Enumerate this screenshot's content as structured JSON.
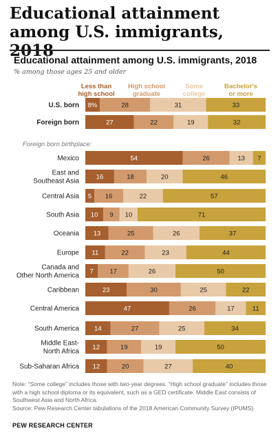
{
  "header": {
    "title": "Educational attainment among U.S. immigrants, 2018"
  },
  "chart_data": {
    "type": "bar",
    "stacked": true,
    "orientation": "horizontal",
    "title": "Educational attainment among U.S. immigrants, 2018",
    "subtitle": "% among those ages 25 and older",
    "series": [
      {
        "name": "Less than high school",
        "color": "#a65f2e"
      },
      {
        "name": "High school graduate",
        "color": "#d29a6c"
      },
      {
        "name": "Some college",
        "color": "#e8c9a8"
      },
      {
        "name": "Bachelor's or more",
        "color": "#c8a23c"
      }
    ],
    "groups": [
      {
        "label": "",
        "rows": [
          {
            "category": "U.S. born",
            "bold": true,
            "values": [
              8,
              28,
              31,
              33
            ],
            "labels": [
              "8%",
              "28",
              "31",
              "33"
            ]
          },
          {
            "category": "Foreign born",
            "bold": true,
            "values": [
              27,
              22,
              19,
              32
            ],
            "labels": [
              "27",
              "22",
              "19",
              "32"
            ]
          }
        ]
      },
      {
        "label": "Foreign born birthplace:",
        "rows": [
          {
            "category": "Mexico",
            "values": [
              54,
              26,
              13,
              7
            ],
            "labels": [
              "54",
              "26",
              "13",
              "7"
            ]
          },
          {
            "category": "East and\nSoutheast Asia",
            "values": [
              16,
              18,
              20,
              46
            ],
            "labels": [
              "16",
              "18",
              "20",
              "46"
            ]
          },
          {
            "category": "Central Asia",
            "values": [
              5,
              16,
              22,
              57
            ],
            "labels": [
              "5",
              "16",
              "22",
              "57"
            ]
          },
          {
            "category": "South Asia",
            "values": [
              10,
              9,
              10,
              71
            ],
            "labels": [
              "10",
              "9",
              "10",
              "71"
            ]
          },
          {
            "category": "Oceania",
            "values": [
              13,
              25,
              26,
              37
            ],
            "labels": [
              "13",
              "25",
              "26",
              "37"
            ]
          },
          {
            "category": "Europe",
            "values": [
              11,
              22,
              23,
              44
            ],
            "labels": [
              "11",
              "22",
              "23",
              "44"
            ]
          },
          {
            "category": "Canada and\nOther North America",
            "values": [
              7,
              17,
              26,
              50
            ],
            "labels": [
              "7",
              "17",
              "26",
              "50"
            ]
          },
          {
            "category": "Caribbean",
            "values": [
              23,
              30,
              25,
              22
            ],
            "labels": [
              "23",
              "30",
              "25",
              "22"
            ]
          },
          {
            "category": "Central America",
            "values": [
              47,
              26,
              17,
              11
            ],
            "labels": [
              "47",
              "26",
              "17",
              "11"
            ]
          },
          {
            "category": "South America",
            "values": [
              14,
              27,
              25,
              34
            ],
            "labels": [
              "14",
              "27",
              "25",
              "34"
            ]
          },
          {
            "category": "Middle East-\nNorth Africa",
            "values": [
              12,
              19,
              19,
              50
            ],
            "labels": [
              "12",
              "19",
              "19",
              "50"
            ]
          },
          {
            "category": "Sub-Saharan Africa",
            "values": [
              12,
              20,
              27,
              40
            ],
            "labels": [
              "12",
              "20",
              "27",
              "40"
            ]
          }
        ]
      }
    ]
  },
  "notes": {
    "note": "Note: “Some college” includes those with two-year degrees. “High school graduate” includes those with a high school diploma or its equivalent, such as a GED certificate. Middle East consists of Southwest Asia and North Africa.",
    "source": "Source: Pew Research Center tabulations of the 2018 American Community Survey (IPUMS).",
    "org": "PEW RESEARCH CENTER"
  }
}
